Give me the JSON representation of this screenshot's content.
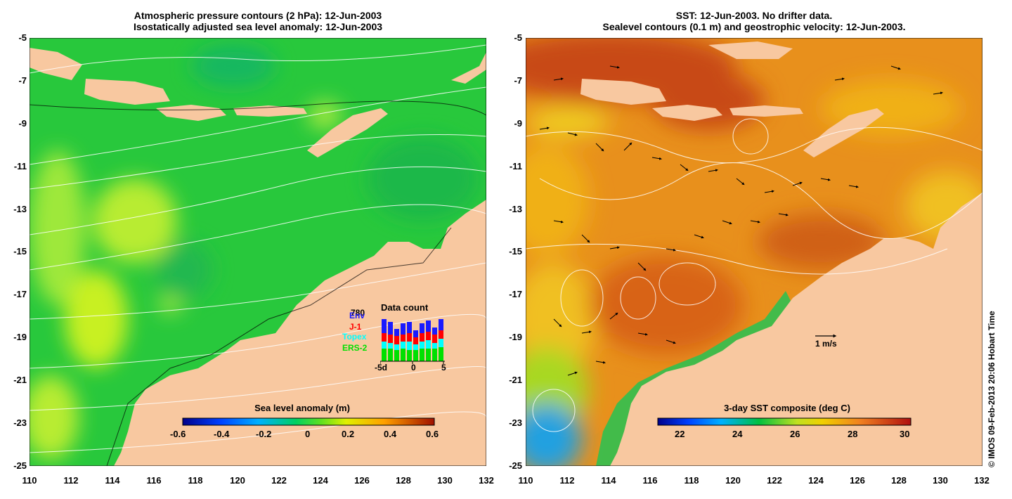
{
  "left_panel": {
    "title_line1": "Atmospheric pressure contours (2 hPa): 12-Jun-2003",
    "title_line2": "Isostatically adjusted sea level anomaly: 12-Jun-2003",
    "colorbar_title": "Sea level anomaly (m)",
    "colorbar_ticks": [
      "-0.6",
      "-0.4",
      "-0.2",
      "0",
      "0.2",
      "0.4",
      "0.6"
    ],
    "inset": {
      "title": "Data count",
      "max_label": "780",
      "legend": [
        {
          "label": "Env",
          "color": "#1a1aff"
        },
        {
          "label": "J-1",
          "color": "#ff0000"
        },
        {
          "label": "Topex",
          "color": "#00ffff"
        },
        {
          "label": "ERS-2",
          "color": "#00e000"
        }
      ],
      "x_ticks": [
        "-5d",
        "0",
        "5"
      ]
    }
  },
  "right_panel": {
    "title_line1": "SST: 12-Jun-2003. No drifter data.",
    "title_line2": "Sealevel contours (0.1 m) and geostrophic velocity: 12-Jun-2003.",
    "colorbar_title": "3-day SST composite (deg C)",
    "colorbar_ticks": [
      "22",
      "24",
      "26",
      "28",
      "30"
    ],
    "velocity_scale_label": "1 m/s"
  },
  "axes": {
    "y_ticks": [
      "-5",
      "-7",
      "-9",
      "-11",
      "-13",
      "-15",
      "-17",
      "-19",
      "-21",
      "-23",
      "-25"
    ],
    "x_ticks": [
      "110",
      "112",
      "114",
      "116",
      "118",
      "120",
      "122",
      "124",
      "126",
      "128",
      "130",
      "132"
    ]
  },
  "copyright": "© IMOS 09-Feb-2013 20:06 Hobart Time",
  "colors": {
    "ocean_green": "#22c83a",
    "land": "#f8c8a0",
    "sst_orange": "#e88a1a",
    "sst_red": "#c84018"
  }
}
